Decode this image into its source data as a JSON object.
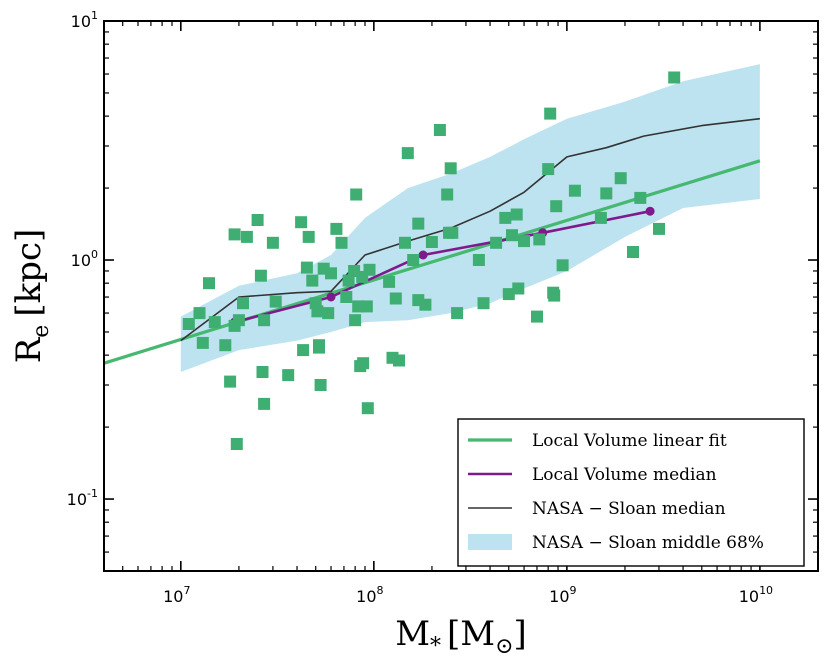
{
  "chart_data": {
    "type": "scatter",
    "x_scale": "log",
    "y_scale": "log",
    "xlim": [
      4000000,
      20000000000
    ],
    "ylim": [
      0.05,
      10
    ],
    "x_ticks": [
      {
        "value": 10000000,
        "base": "10",
        "exp": "7"
      },
      {
        "value": 100000000,
        "base": "10",
        "exp": "8"
      },
      {
        "value": 1000000000,
        "base": "10",
        "exp": "9"
      },
      {
        "value": 10000000000,
        "base": "10",
        "exp": "10"
      }
    ],
    "y_ticks": [
      {
        "value": 0.1,
        "base": "10",
        "exp": "-1"
      },
      {
        "value": 1,
        "base": "10",
        "exp": "0"
      },
      {
        "value": 10,
        "base": "10",
        "exp": "1"
      }
    ],
    "xlabel": {
      "main": "M",
      "sub": "*",
      "unit_open": "[M",
      "unit_sub": "⊙",
      "unit_close": "]"
    },
    "ylabel": {
      "main": "R",
      "sub": "e",
      "unit": "[kpc]"
    },
    "grid": false,
    "legend_position": "bottom-right",
    "colors": {
      "scatter": "#3fae73",
      "linear_fit": "#46b86f",
      "lv_median": "#7f1a8c",
      "nasa_median": "#333333",
      "band": "#bde3f0"
    },
    "series": [
      {
        "name": "NASA − Sloan middle 68%",
        "kind": "band",
        "x": [
          10000000,
          20000000,
          40000000,
          60000000,
          90000000,
          150000000,
          250000000,
          400000000,
          600000000,
          1000000000,
          2000000000,
          4000000000,
          10000000000
        ],
        "lower": [
          0.34,
          0.42,
          0.46,
          0.5,
          0.55,
          0.56,
          0.6,
          0.66,
          0.76,
          0.9,
          1.25,
          1.65,
          1.8
        ],
        "upper": [
          0.58,
          0.78,
          0.88,
          1.05,
          1.5,
          2.0,
          2.3,
          2.7,
          3.2,
          3.9,
          4.6,
          5.6,
          6.6
        ]
      },
      {
        "name": "Local Volume linear fit",
        "kind": "line",
        "x": [
          4000000,
          10000000000
        ],
        "y": [
          0.37,
          2.6
        ]
      },
      {
        "name": "NASA − Sloan median",
        "kind": "line",
        "x": [
          10000000,
          20000000,
          40000000,
          60000000,
          90000000,
          150000000,
          250000000,
          400000000,
          600000000,
          1000000000,
          1600000000,
          2500000000,
          5000000000,
          10000000000
        ],
        "y": [
          0.46,
          0.7,
          0.73,
          0.74,
          1.05,
          1.2,
          1.36,
          1.6,
          1.92,
          2.7,
          2.95,
          3.3,
          3.65,
          3.9
        ]
      },
      {
        "name": "Local Volume median",
        "kind": "line_markers",
        "x": [
          19000000,
          60000000,
          180000000,
          750000000,
          2700000000
        ],
        "y": [
          0.55,
          0.7,
          1.05,
          1.3,
          1.6
        ]
      },
      {
        "name": "",
        "kind": "scatter",
        "x": [
          11000000,
          12500000,
          13000000,
          14000000,
          15000000,
          17000000,
          18000000,
          19000000,
          19000000,
          19500000,
          20000000,
          21000000,
          22000000,
          25000000,
          26000000,
          26500000,
          27000000,
          27000000,
          30000000,
          31000000,
          36000000,
          42000000,
          43000000,
          45000000,
          46000000,
          48000000,
          50000000,
          51000000,
          52000000,
          52000000,
          53000000,
          55000000,
          58000000,
          60000000,
          64000000,
          68000000,
          72000000,
          74000000,
          79000000,
          80000000,
          81000000,
          83000000,
          85000000,
          87000000,
          88000000,
          92000000,
          93000000,
          95000000,
          120000000,
          125000000,
          130000000,
          135000000,
          145000000,
          150000000,
          160000000,
          170000000,
          170000000,
          185000000,
          200000000,
          220000000,
          240000000,
          245000000,
          250000000,
          255000000,
          270000000,
          350000000,
          370000000,
          430000000,
          480000000,
          500000000,
          520000000,
          550000000,
          560000000,
          600000000,
          700000000,
          720000000,
          800000000,
          820000000,
          850000000,
          860000000,
          880000000,
          950000000,
          1100000000,
          1500000000,
          1600000000,
          1900000000,
          2200000000,
          2400000000,
          3000000000,
          3600000000
        ],
        "y": [
          0.54,
          0.6,
          0.45,
          0.8,
          0.55,
          0.44,
          0.31,
          0.53,
          1.28,
          0.17,
          0.56,
          0.66,
          1.25,
          1.47,
          0.86,
          0.34,
          0.25,
          0.56,
          1.18,
          0.67,
          0.33,
          1.44,
          0.42,
          0.93,
          1.25,
          0.82,
          0.66,
          0.61,
          0.43,
          0.44,
          0.3,
          0.92,
          0.6,
          0.88,
          1.35,
          1.18,
          0.7,
          0.82,
          0.9,
          0.56,
          1.88,
          0.64,
          0.36,
          0.85,
          0.37,
          0.64,
          0.24,
          0.91,
          0.81,
          0.39,
          0.69,
          0.38,
          1.18,
          2.8,
          1.0,
          1.42,
          0.68,
          0.65,
          1.19,
          3.5,
          1.88,
          1.3,
          2.42,
          1.3,
          0.6,
          1.0,
          0.66,
          1.18,
          1.5,
          0.72,
          1.27,
          1.55,
          0.76,
          1.2,
          0.58,
          1.22,
          2.4,
          4.1,
          0.73,
          0.71,
          1.68,
          0.95,
          1.95,
          1.5,
          1.9,
          2.2,
          1.08,
          1.82,
          1.35,
          5.8
        ]
      }
    ]
  }
}
